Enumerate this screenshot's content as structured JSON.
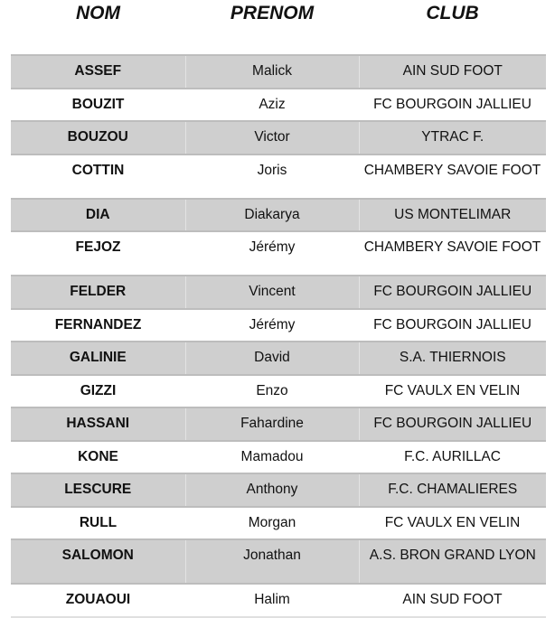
{
  "headers": {
    "nom": "NOM",
    "prenom": "PRENOM",
    "club": "CLUB"
  },
  "rows": [
    {
      "nom": "ASSEF",
      "prenom": "Malick",
      "club": "AIN SUD FOOT"
    },
    {
      "nom": "BOUZIT",
      "prenom": "Aziz",
      "club": "FC BOURGOIN JALLIEU"
    },
    {
      "nom": "BOUZOU",
      "prenom": "Victor",
      "club": "YTRAC F."
    },
    {
      "nom": "COTTIN",
      "prenom": "Joris",
      "club": "CHAMBERY SAVOIE FOOT"
    },
    {
      "nom": "DIA",
      "prenom": "Diakarya",
      "club": "US MONTELIMAR"
    },
    {
      "nom": "FEJOZ",
      "prenom": "Jérémy",
      "club": "CHAMBERY SAVOIE FOOT"
    },
    {
      "nom": "FELDER",
      "prenom": "Vincent",
      "club": "FC BOURGOIN JALLIEU"
    },
    {
      "nom": "FERNANDEZ",
      "prenom": "Jérémy",
      "club": "FC BOURGOIN JALLIEU"
    },
    {
      "nom": "GALINIE",
      "prenom": "David",
      "club": "S.A. THIERNOIS"
    },
    {
      "nom": "GIZZI",
      "prenom": "Enzo",
      "club": "FC VAULX EN VELIN"
    },
    {
      "nom": "HASSANI",
      "prenom": "Fahardine",
      "club": "FC BOURGOIN JALLIEU"
    },
    {
      "nom": "KONE",
      "prenom": "Mamadou",
      "club": "F.C. AURILLAC"
    },
    {
      "nom": "LESCURE",
      "prenom": "Anthony",
      "club": "F.C. CHAMALIERES"
    },
    {
      "nom": "RULL",
      "prenom": "Morgan",
      "club": "FC VAULX EN VELIN"
    },
    {
      "nom": "SALOMON",
      "prenom": "Jonathan",
      "club": "A.S. BRON GRAND LYON"
    },
    {
      "nom": "ZOUAOUI",
      "prenom": "Halim",
      "club": "AIN SUD FOOT"
    }
  ]
}
